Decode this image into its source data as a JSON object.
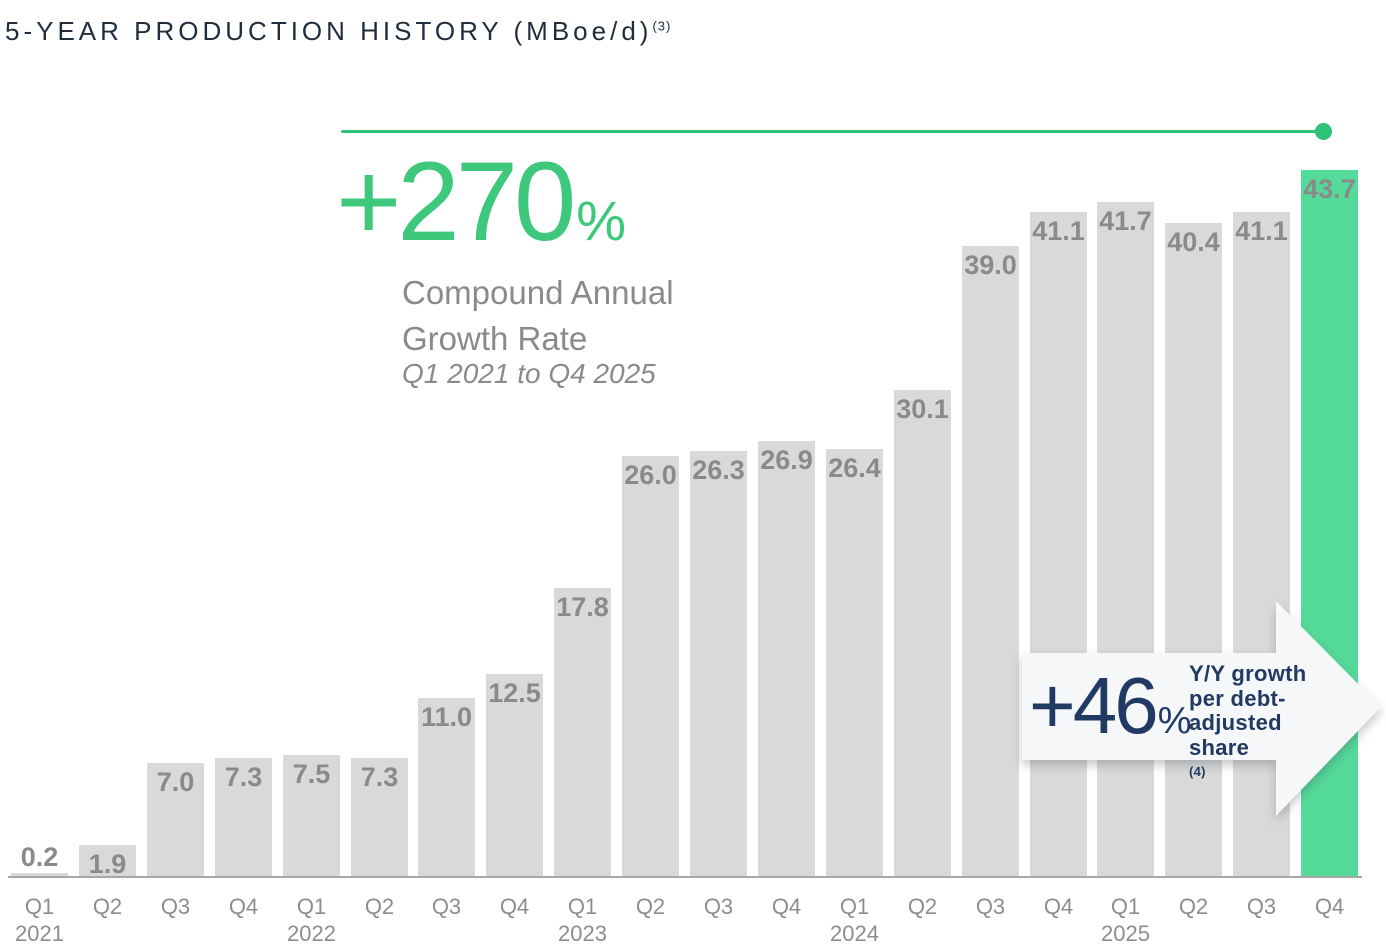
{
  "title": {
    "text": "5-YEAR PRODUCTION HISTORY (MBoe/d)",
    "footnote_sup": "(3)"
  },
  "cagr_callout": {
    "value": "+270",
    "percent_sign": "%",
    "label_line1": "Compound Annual",
    "label_line2": "Growth Rate",
    "range_note": "Q1 2021 to Q4 2025"
  },
  "growth_arrow": {
    "value": "+46",
    "percent_sign": "%",
    "label_line1": "Y/Y growth",
    "label_line2": "per debt-",
    "label_line3": "adjusted",
    "label_line4": "share",
    "footnote_sup": "(4)"
  },
  "colors": {
    "accent_green": "#2fc377",
    "cagr_green": "#3dc87b",
    "bar_green": "#54da99",
    "bar_gray": "#d9d9d9",
    "value_label_gray": "#8a8a8a",
    "tick_gray": "#8d8d8d",
    "axis_gray": "#a6a6a6",
    "title_navy": "#1f2d3d",
    "arrow_navy": "#213a64",
    "arrow_fill": "#f6f7f8"
  },
  "chart_data": {
    "type": "bar",
    "title": "5-YEAR PRODUCTION HISTORY (MBoe/d)",
    "ylabel": "MBoe/d",
    "xlabel": "",
    "grid": false,
    "legend": "none",
    "ylim": [
      0,
      43.7
    ],
    "categories": [
      "Q1 2021",
      "Q2 2021",
      "Q3 2021",
      "Q4 2021",
      "Q1 2022",
      "Q2 2022",
      "Q3 2022",
      "Q4 2022",
      "Q1 2023",
      "Q2 2023",
      "Q3 2023",
      "Q4 2023",
      "Q1 2024",
      "Q2 2024",
      "Q3 2024",
      "Q4 2024",
      "Q1 2025",
      "Q2 2025",
      "Q3 2025",
      "Q4 2025"
    ],
    "x_tick_quarters": [
      "Q1",
      "Q2",
      "Q3",
      "Q4",
      "Q1",
      "Q2",
      "Q3",
      "Q4",
      "Q1",
      "Q2",
      "Q3",
      "Q4",
      "Q1",
      "Q2",
      "Q3",
      "Q4",
      "Q1",
      "Q2",
      "Q3",
      "Q4"
    ],
    "x_tick_years": {
      "0": "2021",
      "4": "2022",
      "8": "2023",
      "12": "2024",
      "16": "2025"
    },
    "values": [
      0.2,
      1.9,
      7.0,
      7.3,
      7.5,
      7.3,
      11.0,
      12.5,
      17.8,
      26.0,
      26.3,
      26.9,
      26.4,
      30.1,
      39.0,
      41.1,
      41.7,
      40.4,
      41.1,
      43.7
    ],
    "bar_labels": [
      "0.2",
      "1.9",
      "7.0",
      "7.3",
      "7.5",
      "7.3",
      "11.0",
      "12.5",
      "17.8",
      "26.0",
      "26.3",
      "26.9",
      "26.4",
      "30.1",
      "39.0",
      "41.1",
      "41.7",
      "40.4",
      "41.1",
      "43.7"
    ],
    "highlight_index": 19,
    "annotations": [
      "+270% Compound Annual Growth Rate Q1 2021 to Q4 2025",
      "+46% Y/Y growth per debt-adjusted share(4)"
    ]
  }
}
